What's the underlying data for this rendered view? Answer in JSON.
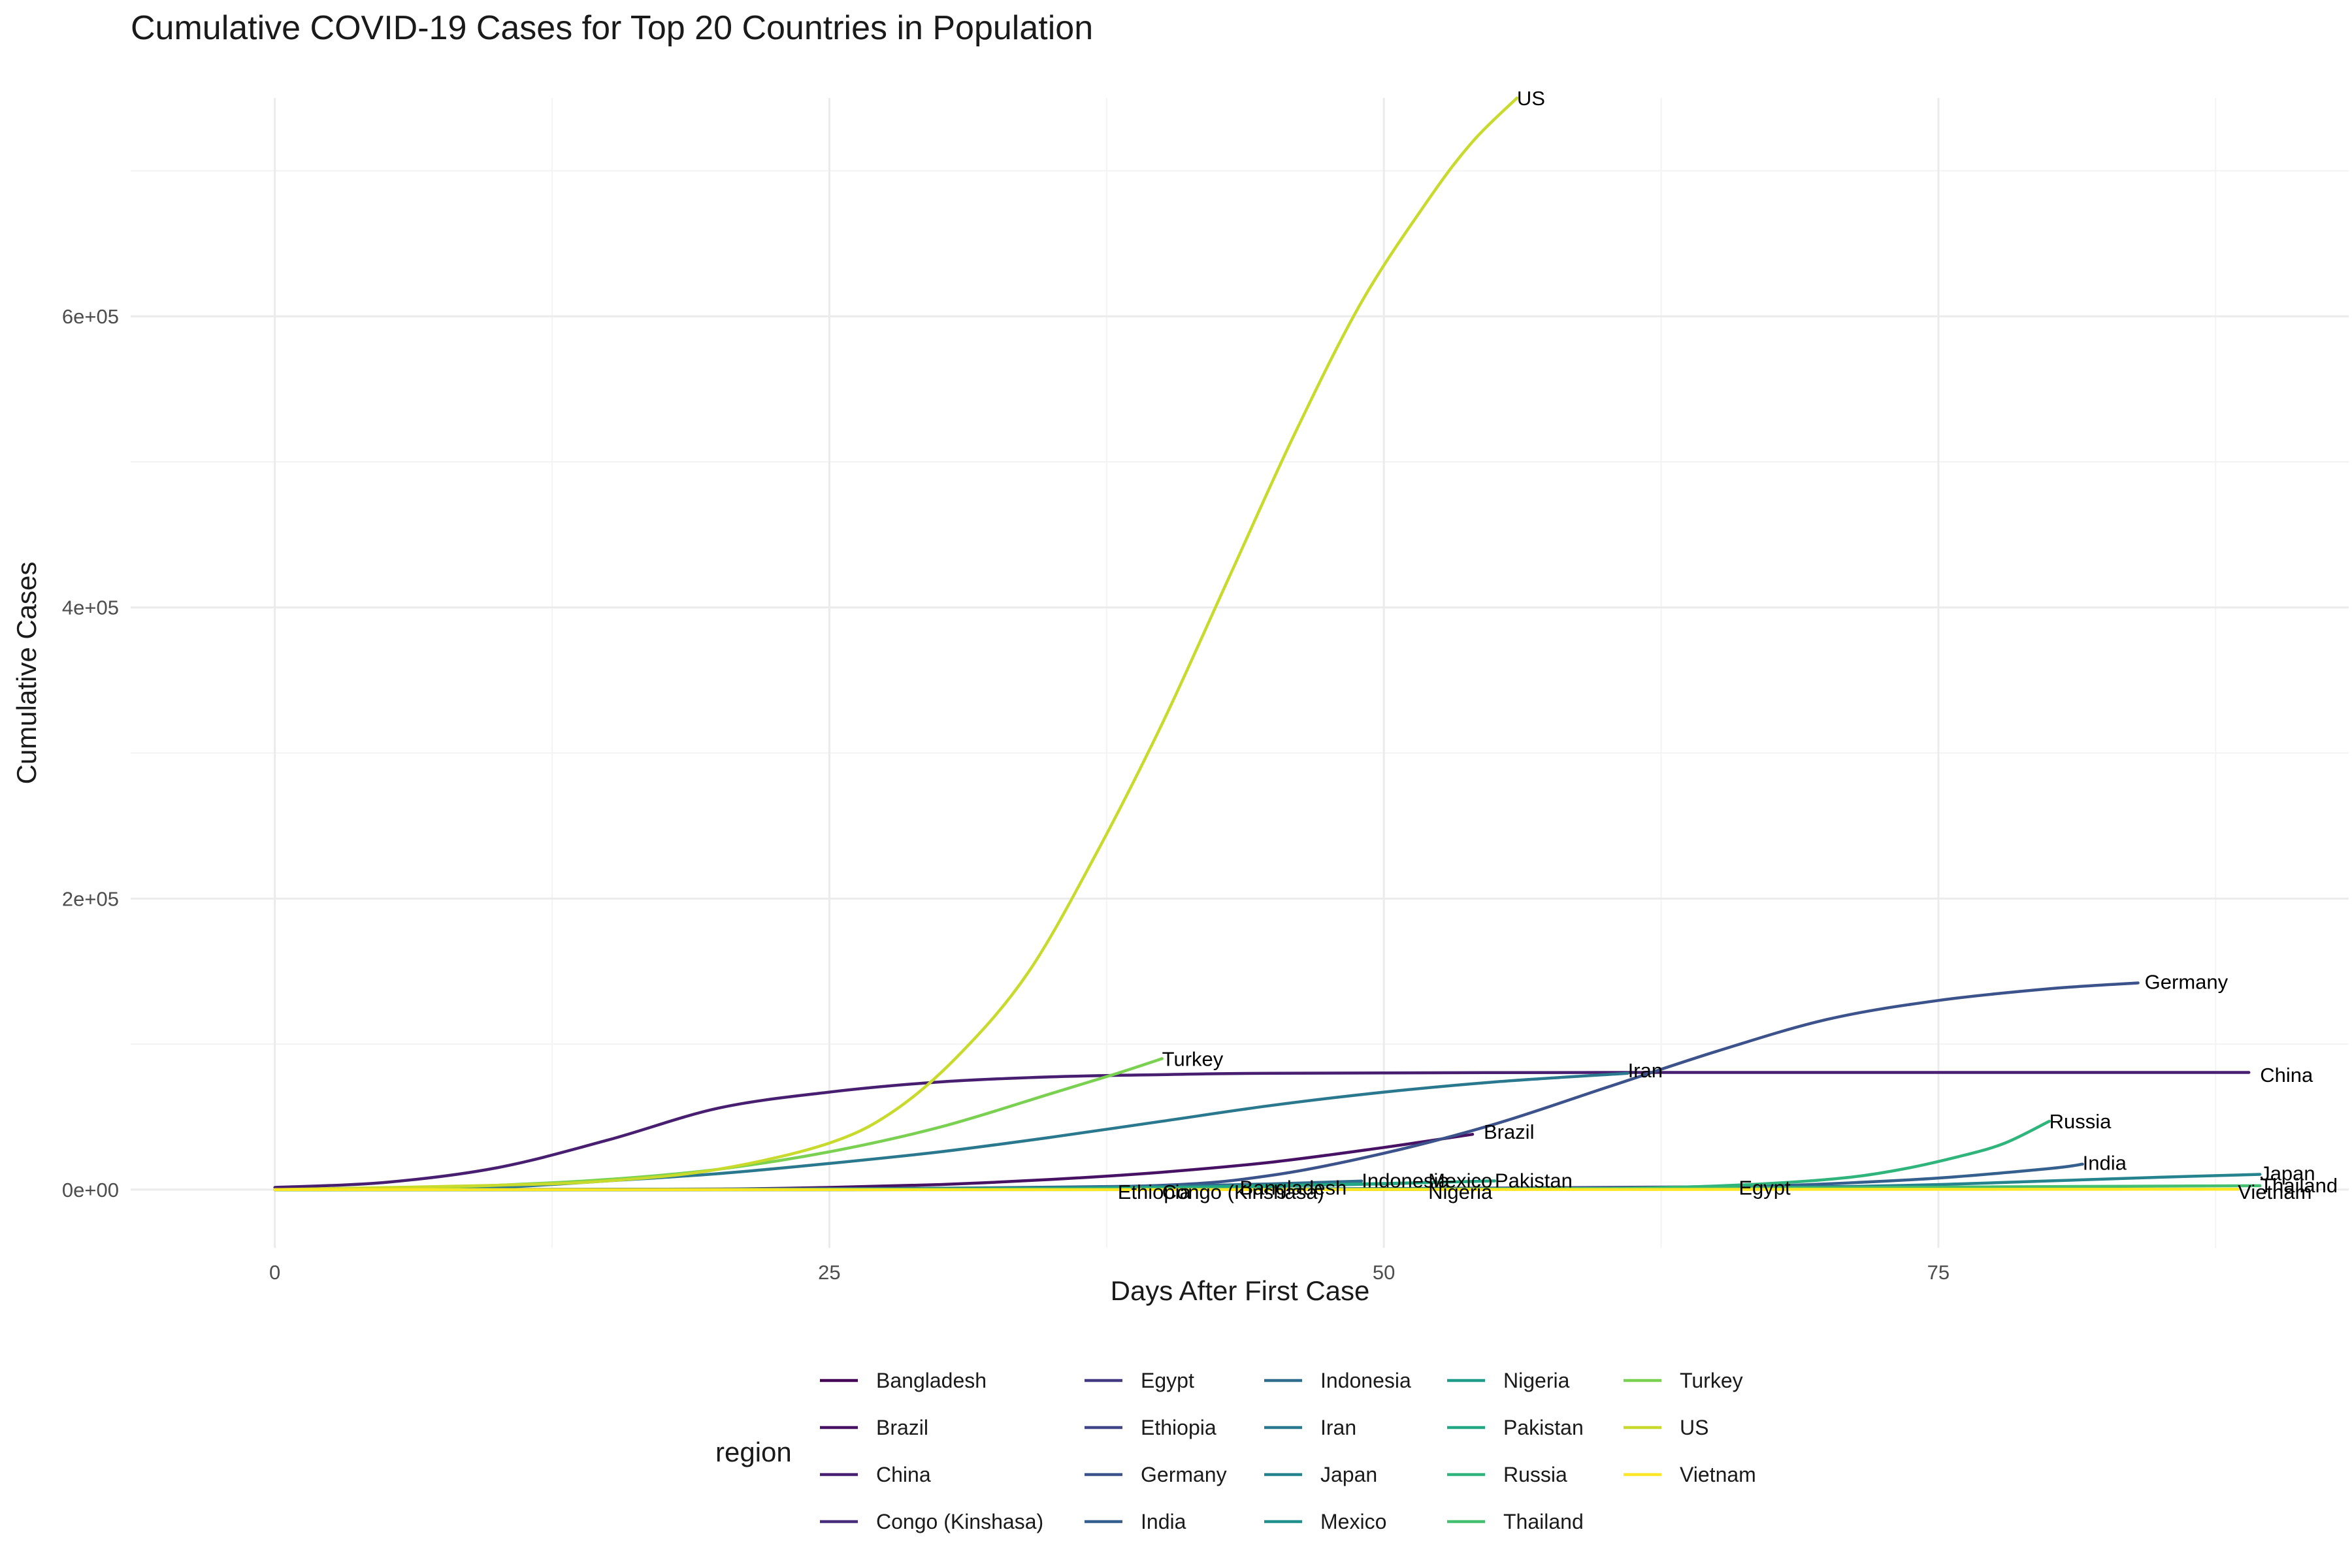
{
  "chart_data": {
    "type": "line",
    "title": "Cumulative COVID-19 Cases for Top 20 Countries in Population",
    "xlabel": "Days After First Case",
    "ylabel": "Cumulative Cases",
    "xlim": [
      -6.5,
      93.5
    ],
    "ylim": [
      -40000,
      750000
    ],
    "x_ticks": [
      0,
      25,
      50,
      75
    ],
    "x_tick_labels": [
      "0",
      "25",
      "50",
      "75"
    ],
    "x_minor_ticks": [
      12.5,
      37.5,
      62.5,
      87.5
    ],
    "y_ticks": [
      0,
      200000,
      400000,
      600000
    ],
    "y_tick_labels": [
      "0e+00",
      "2e+05",
      "4e+05",
      "6e+05"
    ],
    "y_minor_ticks": [
      100000,
      300000,
      500000,
      700000
    ],
    "grid": true,
    "legend": {
      "title": "region",
      "position": "bottom",
      "columns": [
        [
          "Bangladesh",
          "Brazil",
          "China",
          "Congo (Kinshasa)"
        ],
        [
          "Egypt",
          "Ethiopia",
          "Germany",
          "India"
        ],
        [
          "Indonesia",
          "Iran",
          "Japan",
          "Mexico"
        ],
        [
          "Nigeria",
          "Pakistan",
          "Russia",
          "Thailand"
        ],
        [
          "Turkey",
          "US",
          "Vietnam"
        ]
      ]
    },
    "series": [
      {
        "name": "Bangladesh",
        "color": "#440154",
        "label": "Bangladesh",
        "label_x": 43.5,
        "label_y": 1500,
        "points": [
          [
            0,
            0
          ],
          [
            10,
            10
          ],
          [
            20,
            50
          ],
          [
            30,
            200
          ],
          [
            38,
            700
          ],
          [
            43,
            1700
          ]
        ]
      },
      {
        "name": "Brazil",
        "color": "#471164",
        "label": "Brazil",
        "label_x": 54.5,
        "label_y": 40000,
        "points": [
          [
            0,
            0
          ],
          [
            10,
            50
          ],
          [
            20,
            400
          ],
          [
            25,
            1500
          ],
          [
            30,
            3500
          ],
          [
            35,
            7000
          ],
          [
            40,
            12000
          ],
          [
            45,
            19000
          ],
          [
            50,
            29000
          ],
          [
            54,
            38000
          ]
        ]
      },
      {
        "name": "China",
        "color": "#481F70",
        "label": "China",
        "label_x": 89.5,
        "label_y": 79000,
        "points": [
          [
            0,
            1500
          ],
          [
            5,
            5000
          ],
          [
            10,
            15000
          ],
          [
            15,
            34000
          ],
          [
            20,
            56000
          ],
          [
            25,
            67000
          ],
          [
            30,
            74000
          ],
          [
            35,
            77500
          ],
          [
            40,
            79000
          ],
          [
            45,
            80000
          ],
          [
            60,
            80500
          ],
          [
            75,
            80500
          ],
          [
            89,
            80500
          ]
        ]
      },
      {
        "name": "Congo (Kinshasa)",
        "color": "#472D7B",
        "label": "Congo (Kinshasa)",
        "label_x": 40,
        "label_y": -1500,
        "points": [
          [
            0,
            0
          ],
          [
            20,
            50
          ],
          [
            30,
            100
          ],
          [
            35,
            150
          ],
          [
            40,
            250
          ]
        ]
      },
      {
        "name": "Egypt",
        "color": "#443A83",
        "label": "Egypt",
        "label_x": 66,
        "label_y": 1500,
        "points": [
          [
            0,
            0
          ],
          [
            20,
            50
          ],
          [
            40,
            300
          ],
          [
            50,
            700
          ],
          [
            60,
            1500
          ],
          [
            66,
            2100
          ]
        ]
      },
      {
        "name": "Ethiopia",
        "color": "#404688",
        "label": "Ethiopia",
        "label_x": 38,
        "label_y": -1500,
        "points": [
          [
            0,
            0
          ],
          [
            20,
            10
          ],
          [
            30,
            40
          ],
          [
            38,
            100
          ]
        ]
      },
      {
        "name": "Germany",
        "color": "#3B528B",
        "label": "Germany",
        "label_x": 84.3,
        "label_y": 143000,
        "points": [
          [
            0,
            0
          ],
          [
            20,
            300
          ],
          [
            30,
            800
          ],
          [
            40,
            3000
          ],
          [
            45,
            10000
          ],
          [
            50,
            25000
          ],
          [
            55,
            45000
          ],
          [
            60,
            70000
          ],
          [
            65,
            95000
          ],
          [
            70,
            117000
          ],
          [
            75,
            130000
          ],
          [
            80,
            138000
          ],
          [
            84,
            142000
          ]
        ]
      },
      {
        "name": "India",
        "color": "#355F8D",
        "label": "India",
        "label_x": 81.5,
        "label_y": 18500,
        "points": [
          [
            0,
            0
          ],
          [
            30,
            20
          ],
          [
            40,
            60
          ],
          [
            50,
            150
          ],
          [
            55,
            400
          ],
          [
            60,
            700
          ],
          [
            65,
            1500
          ],
          [
            70,
            4000
          ],
          [
            75,
            8000
          ],
          [
            80,
            14500
          ],
          [
            81.5,
            17500
          ]
        ]
      },
      {
        "name": "Indonesia",
        "color": "#2F6C8E",
        "label": "Indonesia",
        "label_x": 49,
        "label_y": 6500,
        "points": [
          [
            0,
            0
          ],
          [
            10,
            20
          ],
          [
            20,
            300
          ],
          [
            30,
            1000
          ],
          [
            40,
            2500
          ],
          [
            45,
            4000
          ],
          [
            49,
            5900
          ]
        ]
      },
      {
        "name": "Iran",
        "color": "#2A788E",
        "label": "Iran",
        "label_x": 61,
        "label_y": 82000,
        "points": [
          [
            0,
            0
          ],
          [
            5,
            100
          ],
          [
            10,
            1500
          ],
          [
            15,
            6000
          ],
          [
            20,
            11000
          ],
          [
            25,
            18000
          ],
          [
            30,
            26000
          ],
          [
            35,
            36000
          ],
          [
            40,
            47000
          ],
          [
            45,
            58000
          ],
          [
            50,
            67000
          ],
          [
            55,
            74000
          ],
          [
            61,
            80000
          ]
        ]
      },
      {
        "name": "Japan",
        "color": "#25838E",
        "label": "Japan",
        "label_x": 89.5,
        "label_y": 11500,
        "points": [
          [
            0,
            0
          ],
          [
            30,
            100
          ],
          [
            50,
            500
          ],
          [
            60,
            1000
          ],
          [
            70,
            2000
          ],
          [
            75,
            3500
          ],
          [
            80,
            6000
          ],
          [
            85,
            8500
          ],
          [
            89.5,
            10500
          ]
        ]
      },
      {
        "name": "Mexico",
        "color": "#21908C",
        "label": "Mexico",
        "label_x": 52,
        "label_y": 6500,
        "points": [
          [
            0,
            0
          ],
          [
            20,
            30
          ],
          [
            30,
            300
          ],
          [
            40,
            1200
          ],
          [
            45,
            2500
          ],
          [
            50,
            4000
          ],
          [
            52,
            5000
          ]
        ]
      },
      {
        "name": "Nigeria",
        "color": "#1E9C89",
        "label": "Nigeria",
        "label_x": 52,
        "label_y": -1500,
        "points": [
          [
            0,
            0
          ],
          [
            20,
            10
          ],
          [
            30,
            50
          ],
          [
            40,
            200
          ],
          [
            52,
            600
          ]
        ]
      },
      {
        "name": "Pakistan",
        "color": "#22A884",
        "label": "Pakistan",
        "label_x": 55,
        "label_y": 6500,
        "points": [
          [
            0,
            0
          ],
          [
            20,
            100
          ],
          [
            30,
            500
          ],
          [
            40,
            1500
          ],
          [
            45,
            2800
          ],
          [
            50,
            4200
          ],
          [
            55,
            6000
          ]
        ]
      },
      {
        "name": "Russia",
        "color": "#2FB47C",
        "label": "Russia",
        "label_x": 80,
        "label_y": 47000,
        "points": [
          [
            0,
            0
          ],
          [
            40,
            20
          ],
          [
            50,
            100
          ],
          [
            55,
            300
          ],
          [
            60,
            800
          ],
          [
            65,
            2500
          ],
          [
            70,
            7000
          ],
          [
            73,
            13000
          ],
          [
            76,
            23000
          ],
          [
            78,
            32000
          ],
          [
            80,
            47000
          ]
        ]
      },
      {
        "name": "Thailand",
        "color": "#44BF70",
        "label": "Thailand",
        "label_x": 89.5,
        "label_y": 3000,
        "points": [
          [
            0,
            0
          ],
          [
            20,
            50
          ],
          [
            40,
            100
          ],
          [
            50,
            300
          ],
          [
            60,
            700
          ],
          [
            70,
            1300
          ],
          [
            80,
            2100
          ],
          [
            89.5,
            2700
          ]
        ]
      },
      {
        "name": "Turkey",
        "color": "#7AD151",
        "label": "Turkey",
        "label_x": 40,
        "label_y": 90000,
        "points": [
          [
            0,
            0
          ],
          [
            5,
            800
          ],
          [
            10,
            3000
          ],
          [
            15,
            7000
          ],
          [
            20,
            14000
          ],
          [
            25,
            26000
          ],
          [
            30,
            43000
          ],
          [
            35,
            66000
          ],
          [
            38,
            80000
          ],
          [
            40,
            90000
          ]
        ]
      },
      {
        "name": "US",
        "color": "#C8DA2B",
        "label": "US",
        "label_x": 56,
        "label_y": 750000,
        "points": [
          [
            0,
            0
          ],
          [
            10,
            3000
          ],
          [
            15,
            6000
          ],
          [
            20,
            14000
          ],
          [
            25,
            32000
          ],
          [
            28,
            55000
          ],
          [
            31,
            95000
          ],
          [
            34,
            150000
          ],
          [
            37,
            230000
          ],
          [
            40,
            320000
          ],
          [
            43,
            420000
          ],
          [
            46,
            520000
          ],
          [
            49,
            610000
          ],
          [
            52,
            680000
          ],
          [
            54,
            720000
          ],
          [
            56,
            750000
          ]
        ]
      },
      {
        "name": "Vietnam",
        "color": "#FDE725",
        "label": "Vietnam",
        "label_x": 88.5,
        "label_y": -1500,
        "points": [
          [
            0,
            0
          ],
          [
            20,
            16
          ],
          [
            40,
            50
          ],
          [
            60,
            120
          ],
          [
            70,
            200
          ],
          [
            80,
            260
          ],
          [
            88.5,
            270
          ]
        ]
      }
    ]
  }
}
